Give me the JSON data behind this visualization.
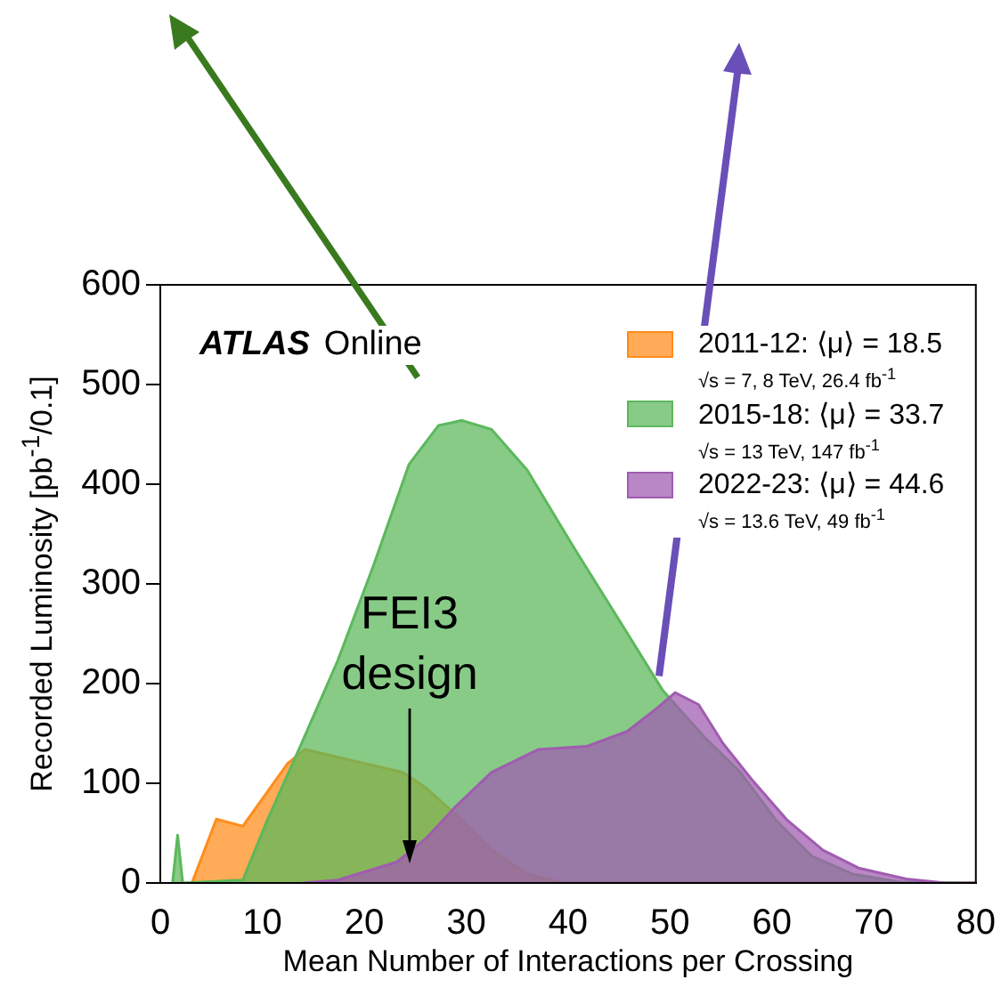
{
  "chart_data": {
    "type": "area",
    "xlabel": "Mean Number of Interactions per Crossing",
    "ylabel": "Recorded Luminosity [pb$^{-1}$/0.1]",
    "xlim": [
      0,
      80
    ],
    "xticks": [
      0,
      10,
      20,
      30,
      40,
      50,
      60,
      70,
      80
    ],
    "ylim": [
      0,
      600
    ],
    "yticks": [
      0,
      100,
      200,
      300,
      400,
      500,
      600
    ],
    "legend": "top right",
    "annotations": [
      "ATLAS Online",
      "√s = 7, 8 TeV, 26.4 fb$^{-1}$",
      "√s = 13 TeV, 147 fb$^{-1}$",
      "√s = 13.6 TeV, 49 fb$^{-1}$",
      "FEI3 design"
    ],
    "series": [
      {
        "name": "2011-12: ⟨μ⟩ = 18.5",
        "color": "#ff8c1a",
        "x": [
          3.1,
          5.5,
          8.1,
          12.5,
          14.2,
          19.2,
          23.8,
          26.1,
          29.6,
          32.5,
          36,
          39.5,
          80
        ],
        "values": [
          0,
          64,
          57,
          120,
          134,
          122,
          111,
          95,
          63,
          33,
          9,
          0,
          0
        ]
      },
      {
        "name": "2015-18: ⟨μ⟩ = 33.7",
        "color": "#5cb85c",
        "x": [
          1.2,
          1.7,
          2.2,
          8.1,
          10.5,
          13.6,
          17.4,
          20.9,
          24.4,
          27.3,
          29.6,
          32.5,
          36,
          40.6,
          45.3,
          49.3,
          53.4,
          56.9,
          60.4,
          63.9,
          67.9,
          72.6,
          80
        ],
        "values": [
          0,
          48,
          0,
          3,
          63,
          134,
          223,
          318,
          420,
          459,
          464,
          455,
          414,
          336,
          259,
          193,
          146,
          111,
          63,
          27,
          9,
          1,
          0
        ]
      },
      {
        "name": "2022-23: ⟨μ⟩ = 44.6",
        "color": "#a05cb0",
        "x": [
          14,
          17.4,
          23.2,
          26.1,
          29,
          32.5,
          37.1,
          41.8,
          45.8,
          48.8,
          50.5,
          52.8,
          55.2,
          58,
          61.5,
          65,
          68.5,
          73.2,
          77,
          80
        ],
        "values": [
          0,
          3,
          21,
          45,
          77,
          111,
          134,
          137,
          152,
          176,
          191,
          179,
          140,
          104,
          63,
          33,
          15,
          4,
          0,
          0
        ]
      }
    ]
  }
}
